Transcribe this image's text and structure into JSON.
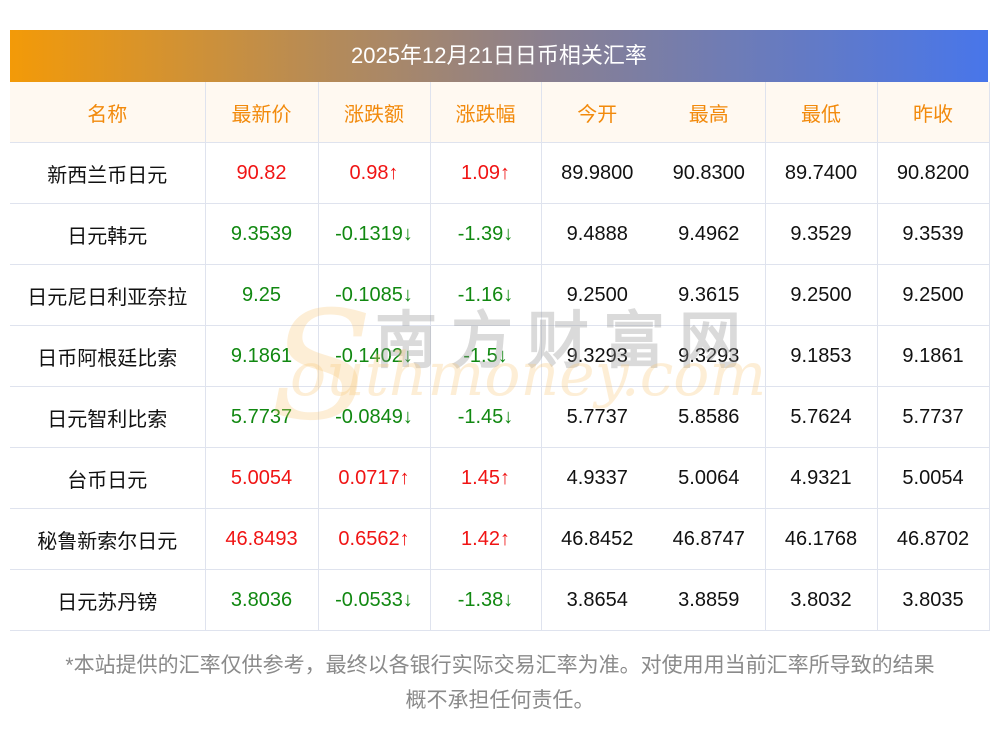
{
  "title": "2025年12月21日日币相关汇率",
  "headers": [
    "名称",
    "最新价",
    "涨跌额",
    "涨跌幅",
    "今开",
    "最高",
    "最低",
    "昨收"
  ],
  "rows": [
    {
      "name": "新西兰币日元",
      "price": "90.82",
      "change": "0.98↑",
      "pct": "1.09↑",
      "open": "89.9800",
      "high": "90.8300",
      "low": "89.7400",
      "prev": "90.8200",
      "dir": "up"
    },
    {
      "name": "日元韩元",
      "price": "9.3539",
      "change": "-0.1319↓",
      "pct": "-1.39↓",
      "open": "9.4888",
      "high": "9.4962",
      "low": "9.3529",
      "prev": "9.3539",
      "dir": "down"
    },
    {
      "name": "日元尼日利亚奈拉",
      "price": "9.25",
      "change": "-0.1085↓",
      "pct": "-1.16↓",
      "open": "9.2500",
      "high": "9.3615",
      "low": "9.2500",
      "prev": "9.2500",
      "dir": "down"
    },
    {
      "name": "日币阿根廷比索",
      "price": "9.1861",
      "change": "-0.1402↓",
      "pct": "-1.5↓",
      "open": "9.3293",
      "high": "9.3293",
      "low": "9.1853",
      "prev": "9.1861",
      "dir": "down"
    },
    {
      "name": "日元智利比索",
      "price": "5.7737",
      "change": "-0.0849↓",
      "pct": "-1.45↓",
      "open": "5.7737",
      "high": "5.8586",
      "low": "5.7624",
      "prev": "5.7737",
      "dir": "down"
    },
    {
      "name": "台币日元",
      "price": "5.0054",
      "change": "0.0717↑",
      "pct": "1.45↑",
      "open": "4.9337",
      "high": "5.0064",
      "low": "4.9321",
      "prev": "5.0054",
      "dir": "up"
    },
    {
      "name": "秘鲁新索尔日元",
      "price": "46.8493",
      "change": "0.6562↑",
      "pct": "1.42↑",
      "open": "46.8452",
      "high": "46.8747",
      "low": "46.1768",
      "prev": "46.8702",
      "dir": "up"
    },
    {
      "name": "日元苏丹镑",
      "price": "3.8036",
      "change": "-0.0533↓",
      "pct": "-1.38↓",
      "open": "3.8654",
      "high": "3.8859",
      "low": "3.8032",
      "prev": "3.8035",
      "dir": "down"
    }
  ],
  "watermark": {
    "cn": "南方财富网",
    "en": "southmoney.com"
  },
  "note_line1": "*本站提供的汇率仅供参考，最终以各银行实际交易汇率为准。对使用用当前汇率所导致的结果",
  "note_line2": "概不承担任何责任。",
  "colors": {
    "up": "#f01414",
    "down": "#118811",
    "header_text": "#f28a0c"
  }
}
